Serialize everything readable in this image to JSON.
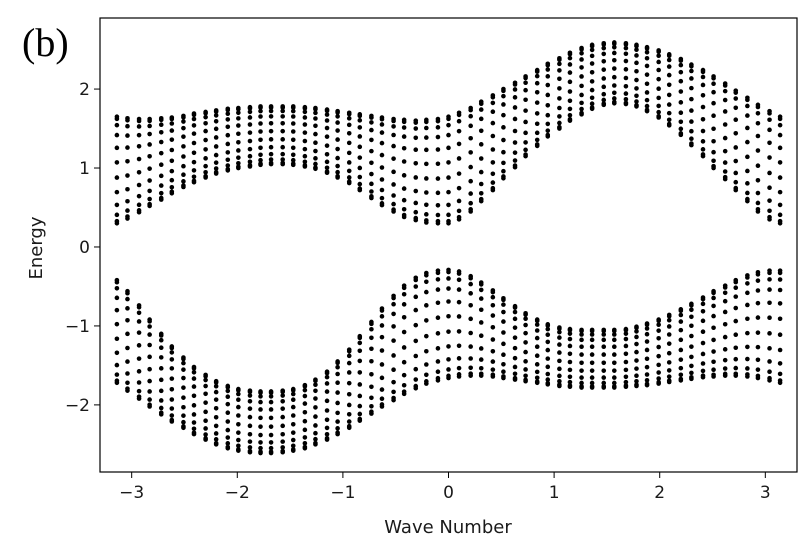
{
  "panel_label": "(b)",
  "chart_data": {
    "type": "scatter",
    "title": "",
    "xlabel": "Wave Number",
    "ylabel": "Energy",
    "xlim": [
      -3.3,
      3.3
    ],
    "ylim": [
      -2.85,
      2.9
    ],
    "xticks": [
      -3,
      -2,
      -1,
      0,
      1,
      2,
      3
    ],
    "xtick_labels": [
      "−3",
      "−2",
      "−1",
      "0",
      "1",
      "2",
      "3"
    ],
    "yticks": [
      -2,
      -1,
      0,
      1,
      2
    ],
    "ytick_labels": [
      "−2",
      "−1",
      "0",
      "1",
      "2"
    ],
    "grid": false,
    "legend": "none",
    "marker_color": "#000000",
    "k_range": [
      -3.14159,
      3.14159
    ],
    "k_count": 61,
    "levels_per_k": 12,
    "bands": [
      {
        "band": "upper",
        "edges": [
          {
            "k": -3.14,
            "low": 0.3,
            "high": 1.65
          },
          {
            "k": -3.04,
            "low": 0.36,
            "high": 1.63
          },
          {
            "k": -2.93,
            "low": 0.44,
            "high": 1.62
          },
          {
            "k": -2.83,
            "low": 0.52,
            "high": 1.62
          },
          {
            "k": -2.72,
            "low": 0.6,
            "high": 1.63
          },
          {
            "k": -2.62,
            "low": 0.68,
            "high": 1.64
          },
          {
            "k": -2.51,
            "low": 0.76,
            "high": 1.66
          },
          {
            "k": -2.41,
            "low": 0.82,
            "high": 1.69
          },
          {
            "k": -2.3,
            "low": 0.88,
            "high": 1.71
          },
          {
            "k": -2.2,
            "low": 0.93,
            "high": 1.73
          },
          {
            "k": -2.09,
            "low": 0.97,
            "high": 1.75
          },
          {
            "k": -1.99,
            "low": 1.0,
            "high": 1.76
          },
          {
            "k": -1.88,
            "low": 1.02,
            "high": 1.77
          },
          {
            "k": -1.78,
            "low": 1.04,
            "high": 1.78
          },
          {
            "k": -1.68,
            "low": 1.05,
            "high": 1.78
          },
          {
            "k": -1.57,
            "low": 1.05,
            "high": 1.78
          },
          {
            "k": -1.47,
            "low": 1.04,
            "high": 1.78
          },
          {
            "k": -1.36,
            "low": 1.02,
            "high": 1.77
          },
          {
            "k": -1.26,
            "low": 0.99,
            "high": 1.76
          },
          {
            "k": -1.15,
            "low": 0.94,
            "high": 1.74
          },
          {
            "k": -1.05,
            "low": 0.88,
            "high": 1.72
          },
          {
            "k": -0.94,
            "low": 0.81,
            "high": 1.7
          },
          {
            "k": -0.84,
            "low": 0.72,
            "high": 1.68
          },
          {
            "k": -0.73,
            "low": 0.62,
            "high": 1.66
          },
          {
            "k": -0.63,
            "low": 0.53,
            "high": 1.64
          },
          {
            "k": -0.52,
            "low": 0.45,
            "high": 1.62
          },
          {
            "k": -0.42,
            "low": 0.38,
            "high": 1.61
          },
          {
            "k": -0.31,
            "low": 0.34,
            "high": 1.6
          },
          {
            "k": -0.21,
            "low": 0.31,
            "high": 1.61
          },
          {
            "k": -0.1,
            "low": 0.3,
            "high": 1.62
          },
          {
            "k": 0.0,
            "low": 0.3,
            "high": 1.65
          },
          {
            "k": 0.1,
            "low": 0.35,
            "high": 1.7
          },
          {
            "k": 0.21,
            "low": 0.45,
            "high": 1.76
          },
          {
            "k": 0.31,
            "low": 0.58,
            "high": 1.84
          },
          {
            "k": 0.42,
            "low": 0.72,
            "high": 1.92
          },
          {
            "k": 0.52,
            "low": 0.87,
            "high": 2.0
          },
          {
            "k": 0.63,
            "low": 1.01,
            "high": 2.08
          },
          {
            "k": 0.73,
            "low": 1.15,
            "high": 2.16
          },
          {
            "k": 0.84,
            "low": 1.28,
            "high": 2.24
          },
          {
            "k": 0.94,
            "low": 1.4,
            "high": 2.32
          },
          {
            "k": 1.05,
            "low": 1.5,
            "high": 2.39
          },
          {
            "k": 1.15,
            "low": 1.6,
            "high": 2.46
          },
          {
            "k": 1.26,
            "low": 1.68,
            "high": 2.52
          },
          {
            "k": 1.36,
            "low": 1.75,
            "high": 2.56
          },
          {
            "k": 1.47,
            "low": 1.8,
            "high": 2.58
          },
          {
            "k": 1.57,
            "low": 1.82,
            "high": 2.59
          },
          {
            "k": 1.68,
            "low": 1.81,
            "high": 2.58
          },
          {
            "k": 1.78,
            "low": 1.78,
            "high": 2.56
          },
          {
            "k": 1.88,
            "low": 1.72,
            "high": 2.53
          },
          {
            "k": 1.99,
            "low": 1.64,
            "high": 2.49
          },
          {
            "k": 2.09,
            "low": 1.54,
            "high": 2.44
          },
          {
            "k": 2.2,
            "low": 1.42,
            "high": 2.38
          },
          {
            "k": 2.3,
            "low": 1.29,
            "high": 2.31
          },
          {
            "k": 2.41,
            "low": 1.15,
            "high": 2.24
          },
          {
            "k": 2.51,
            "low": 1.0,
            "high": 2.16
          },
          {
            "k": 2.62,
            "low": 0.86,
            "high": 2.07
          },
          {
            "k": 2.72,
            "low": 0.72,
            "high": 1.98
          },
          {
            "k": 2.83,
            "low": 0.58,
            "high": 1.89
          },
          {
            "k": 2.93,
            "low": 0.45,
            "high": 1.8
          },
          {
            "k": 3.04,
            "low": 0.35,
            "high": 1.72
          },
          {
            "k": 3.14,
            "low": 0.3,
            "high": 1.65
          }
        ]
      },
      {
        "band": "lower",
        "edges": [
          {
            "k": -3.14,
            "low": -1.72,
            "high": -0.42
          },
          {
            "k": -3.04,
            "low": -1.82,
            "high": -0.56
          },
          {
            "k": -2.93,
            "low": -1.92,
            "high": -0.74
          },
          {
            "k": -2.83,
            "low": -2.02,
            "high": -0.92
          },
          {
            "k": -2.72,
            "low": -2.12,
            "high": -1.1
          },
          {
            "k": -2.62,
            "low": -2.21,
            "high": -1.26
          },
          {
            "k": -2.51,
            "low": -2.29,
            "high": -1.4
          },
          {
            "k": -2.41,
            "low": -2.37,
            "high": -1.52
          },
          {
            "k": -2.3,
            "low": -2.44,
            "high": -1.62
          },
          {
            "k": -2.2,
            "low": -2.5,
            "high": -1.7
          },
          {
            "k": -2.09,
            "low": -2.55,
            "high": -1.76
          },
          {
            "k": -1.99,
            "low": -2.58,
            "high": -1.8
          },
          {
            "k": -1.88,
            "low": -2.6,
            "high": -1.82
          },
          {
            "k": -1.78,
            "low": -2.61,
            "high": -1.83
          },
          {
            "k": -1.68,
            "low": -2.61,
            "high": -1.83
          },
          {
            "k": -1.57,
            "low": -2.6,
            "high": -1.82
          },
          {
            "k": -1.47,
            "low": -2.58,
            "high": -1.8
          },
          {
            "k": -1.36,
            "low": -2.55,
            "high": -1.75
          },
          {
            "k": -1.26,
            "low": -2.5,
            "high": -1.68
          },
          {
            "k": -1.15,
            "low": -2.44,
            "high": -1.58
          },
          {
            "k": -1.05,
            "low": -2.37,
            "high": -1.45
          },
          {
            "k": -0.94,
            "low": -2.29,
            "high": -1.3
          },
          {
            "k": -0.84,
            "low": -2.2,
            "high": -1.13
          },
          {
            "k": -0.73,
            "low": -2.11,
            "high": -0.95
          },
          {
            "k": -0.63,
            "low": -2.02,
            "high": -0.78
          },
          {
            "k": -0.52,
            "low": -1.94,
            "high": -0.62
          },
          {
            "k": -0.42,
            "low": -1.86,
            "high": -0.49
          },
          {
            "k": -0.31,
            "low": -1.79,
            "high": -0.39
          },
          {
            "k": -0.21,
            "low": -1.73,
            "high": -0.33
          },
          {
            "k": -0.1,
            "low": -1.69,
            "high": -0.3
          },
          {
            "k": 0.0,
            "low": -1.66,
            "high": -0.29
          },
          {
            "k": 0.1,
            "low": -1.64,
            "high": -0.31
          },
          {
            "k": 0.21,
            "low": -1.63,
            "high": -0.37
          },
          {
            "k": 0.31,
            "low": -1.63,
            "high": -0.45
          },
          {
            "k": 0.42,
            "low": -1.64,
            "high": -0.55
          },
          {
            "k": 0.52,
            "low": -1.66,
            "high": -0.65
          },
          {
            "k": 0.63,
            "low": -1.68,
            "high": -0.75
          },
          {
            "k": 0.73,
            "low": -1.7,
            "high": -0.84
          },
          {
            "k": 0.84,
            "low": -1.72,
            "high": -0.92
          },
          {
            "k": 0.94,
            "low": -1.74,
            "high": -0.98
          },
          {
            "k": 1.05,
            "low": -1.76,
            "high": -1.02
          },
          {
            "k": 1.15,
            "low": -1.77,
            "high": -1.04
          },
          {
            "k": 1.26,
            "low": -1.78,
            "high": -1.05
          },
          {
            "k": 1.36,
            "low": -1.78,
            "high": -1.05
          },
          {
            "k": 1.47,
            "low": -1.78,
            "high": -1.05
          },
          {
            "k": 1.57,
            "low": -1.78,
            "high": -1.05
          },
          {
            "k": 1.68,
            "low": -1.77,
            "high": -1.04
          },
          {
            "k": 1.78,
            "low": -1.76,
            "high": -1.01
          },
          {
            "k": 1.88,
            "low": -1.75,
            "high": -0.97
          },
          {
            "k": 1.99,
            "low": -1.73,
            "high": -0.92
          },
          {
            "k": 2.09,
            "low": -1.71,
            "high": -0.86
          },
          {
            "k": 2.2,
            "low": -1.69,
            "high": -0.79
          },
          {
            "k": 2.3,
            "low": -1.67,
            "high": -0.72
          },
          {
            "k": 2.41,
            "low": -1.65,
            "high": -0.64
          },
          {
            "k": 2.51,
            "low": -1.64,
            "high": -0.56
          },
          {
            "k": 2.62,
            "low": -1.63,
            "high": -0.49
          },
          {
            "k": 2.72,
            "low": -1.63,
            "high": -0.42
          },
          {
            "k": 2.83,
            "low": -1.64,
            "high": -0.36
          },
          {
            "k": 2.93,
            "low": -1.66,
            "high": -0.32
          },
          {
            "k": 3.04,
            "low": -1.69,
            "high": -0.3
          },
          {
            "k": 3.14,
            "low": -1.72,
            "high": -0.3
          }
        ]
      }
    ]
  }
}
